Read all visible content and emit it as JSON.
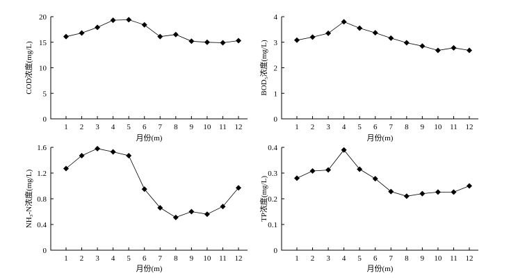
{
  "chart_data": [
    {
      "type": "line",
      "ylabel": "COD浓度(mg/L)",
      "xlabel": "月份(m)",
      "x": [
        1,
        2,
        3,
        4,
        5,
        6,
        7,
        8,
        9,
        10,
        11,
        12
      ],
      "xticks": [
        "1",
        "2",
        "3",
        "4",
        "5",
        "6",
        "7",
        "8",
        "9",
        "10",
        "11",
        "12"
      ],
      "ylim": [
        0,
        20
      ],
      "yticks": [
        "0",
        "5",
        "10",
        "15",
        "20"
      ],
      "yticks_values": [
        0,
        5,
        10,
        15,
        20
      ],
      "series": [
        {
          "values": [
            16.1,
            16.8,
            17.9,
            19.3,
            19.4,
            18.4,
            16.1,
            16.5,
            15.2,
            15.0,
            14.9,
            15.3
          ]
        }
      ],
      "marker": "diamond",
      "grid": false
    },
    {
      "type": "line",
      "ylabel": "BOD₅浓度(mg/L)",
      "xlabel": "月份(m)",
      "x": [
        1,
        2,
        3,
        4,
        5,
        6,
        7,
        8,
        9,
        10,
        11,
        12
      ],
      "xticks": [
        "1",
        "2",
        "3",
        "4",
        "5",
        "6",
        "7",
        "8",
        "9",
        "10",
        "11",
        "12"
      ],
      "ylim": [
        0,
        4
      ],
      "yticks": [
        "0",
        "1",
        "2",
        "3",
        "4"
      ],
      "yticks_values": [
        0,
        1,
        2,
        3,
        4
      ],
      "series": [
        {
          "values": [
            3.08,
            3.2,
            3.35,
            3.8,
            3.55,
            3.37,
            3.16,
            2.98,
            2.85,
            2.68,
            2.78,
            2.68
          ]
        }
      ],
      "marker": "diamond",
      "grid": false
    },
    {
      "type": "line",
      "ylabel": "NH₃-N浓度(mg/L)",
      "xlabel": "月份(m)",
      "x": [
        1,
        2,
        3,
        4,
        5,
        6,
        7,
        8,
        9,
        10,
        11,
        12
      ],
      "xticks": [
        "1",
        "2",
        "3",
        "4",
        "5",
        "6",
        "7",
        "8",
        "9",
        "10",
        "11",
        "12"
      ],
      "ylim": [
        0,
        1.6
      ],
      "yticks": [
        "0",
        "0.4",
        "0.8",
        "1.2",
        "1.6"
      ],
      "yticks_values": [
        0,
        0.4,
        0.8,
        1.2,
        1.6
      ],
      "series": [
        {
          "values": [
            1.27,
            1.47,
            1.58,
            1.53,
            1.47,
            0.95,
            0.66,
            0.51,
            0.6,
            0.56,
            0.68,
            0.97
          ]
        }
      ],
      "marker": "diamond",
      "grid": false
    },
    {
      "type": "line",
      "ylabel": "TP浓度(mg/L)",
      "xlabel": "月份(m)",
      "x": [
        1,
        2,
        3,
        4,
        5,
        6,
        7,
        8,
        9,
        10,
        11,
        12
      ],
      "xticks": [
        "1",
        "2",
        "3",
        "4",
        "5",
        "6",
        "7",
        "8",
        "9",
        "10",
        "11",
        "12"
      ],
      "ylim": [
        0,
        0.4
      ],
      "yticks": [
        "0",
        "0.1",
        "0.2",
        "0.3",
        "0.4"
      ],
      "yticks_values": [
        0,
        0.1,
        0.2,
        0.3,
        0.4
      ],
      "series": [
        {
          "values": [
            0.28,
            0.308,
            0.312,
            0.39,
            0.315,
            0.278,
            0.228,
            0.21,
            0.22,
            0.226,
            0.226,
            0.25
          ]
        }
      ],
      "marker": "diamond",
      "grid": false
    }
  ]
}
